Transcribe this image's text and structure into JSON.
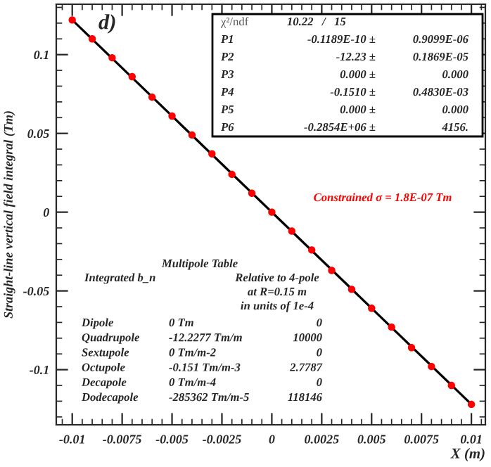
{
  "chart_data": {
    "type": "scatter",
    "xlabel": "X (m)",
    "ylabel": "Straight-line vertical field integral (Tm)",
    "series": [
      {
        "marker": "circle",
        "color": "#ff0000",
        "x": [
          -0.01,
          -0.009,
          -0.008,
          -0.007,
          -0.006,
          -0.005,
          -0.004,
          -0.003,
          -0.002,
          -0.001,
          0,
          0.001,
          0.002,
          0.003,
          0.004,
          0.005,
          0.006,
          0.007,
          0.008,
          0.009,
          0.01
        ],
        "values": [
          0.122,
          0.11,
          0.098,
          0.086,
          0.073,
          0.061,
          0.049,
          0.037,
          0.024,
          0.012,
          0.0,
          -0.012,
          -0.024,
          -0.037,
          -0.049,
          -0.061,
          -0.073,
          -0.086,
          -0.098,
          -0.11,
          -0.122
        ]
      },
      {
        "type": "line",
        "marker": "none",
        "color": "#000000",
        "x": [
          -0.01,
          0.01
        ],
        "values": [
          0.122,
          -0.122
        ]
      }
    ],
    "xlim": [
      -0.0108,
      0.0107
    ],
    "ylim": [
      -0.135,
      0.132
    ],
    "xticks": [
      -0.01,
      -0.0075,
      -0.005,
      -0.0025,
      0,
      0.0025,
      0.005,
      0.0075,
      0.01
    ],
    "yticks": [
      -0.1,
      -0.05,
      0,
      0.05,
      0.1
    ],
    "annotations": [
      "d)",
      "Constrained σ = 1.8E-07 Tm",
      "χ²/ndf",
      "10.22   /   15",
      "P1",
      "-0.1189E-10 ±",
      "0.9099E-06",
      "P2",
      "-12.23 ±",
      "0.1869E-05",
      "P3",
      "0.000 ±",
      "0.000",
      "P4",
      "-0.1510 ±",
      "0.4830E-03",
      "P5",
      "0.000 ±",
      "0.000",
      "P6",
      "-0.2854E+06 ±",
      "4156.",
      "Multipole Table",
      "Integrated b_n",
      "Relative to 4-pole",
      "at R=0.15 m",
      "in units of 1e-4",
      "Dipole",
      "0 Tm",
      "0",
      "Quadrupole",
      "-12.2277 Tm/m",
      "10000",
      "Sextupole",
      "0 Tm/m-2",
      "0",
      "Octupole",
      "-0.151 Tm/m-3",
      "2.7787",
      "Decapole",
      "0 Tm/m-4",
      "0",
      "Dodecapole",
      "-285362 Tm/m-5",
      "118146"
    ]
  }
}
